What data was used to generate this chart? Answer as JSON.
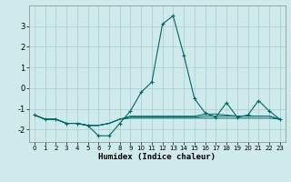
{
  "xlabel": "Humidex (Indice chaleur)",
  "background_color": "#ceeaea",
  "grid_color": "#aacccc",
  "line_color": "#006666",
  "x": [
    0,
    1,
    2,
    3,
    4,
    5,
    6,
    7,
    8,
    9,
    10,
    11,
    12,
    13,
    14,
    15,
    16,
    17,
    18,
    19,
    20,
    21,
    22,
    23
  ],
  "line1": [
    -1.3,
    -1.5,
    -1.5,
    -1.7,
    -1.7,
    -1.8,
    -2.3,
    -2.3,
    -1.7,
    -1.1,
    -0.2,
    0.3,
    3.1,
    3.5,
    1.6,
    -0.5,
    -1.2,
    -1.4,
    -0.7,
    -1.4,
    -1.3,
    -0.6,
    -1.1,
    -1.5
  ],
  "line2": [
    -1.3,
    -1.5,
    -1.5,
    -1.7,
    -1.7,
    -1.8,
    -1.8,
    -1.7,
    -1.5,
    -1.45,
    -1.45,
    -1.45,
    -1.45,
    -1.45,
    -1.45,
    -1.45,
    -1.45,
    -1.45,
    -1.45,
    -1.45,
    -1.45,
    -1.45,
    -1.45,
    -1.5
  ],
  "line3": [
    -1.3,
    -1.5,
    -1.5,
    -1.7,
    -1.7,
    -1.8,
    -1.8,
    -1.7,
    -1.5,
    -1.4,
    -1.4,
    -1.4,
    -1.4,
    -1.4,
    -1.4,
    -1.4,
    -1.35,
    -1.35,
    -1.35,
    -1.35,
    -1.35,
    -1.35,
    -1.35,
    -1.5
  ],
  "line4": [
    -1.3,
    -1.5,
    -1.5,
    -1.7,
    -1.7,
    -1.8,
    -1.8,
    -1.7,
    -1.5,
    -1.35,
    -1.35,
    -1.35,
    -1.35,
    -1.35,
    -1.35,
    -1.35,
    -1.25,
    -1.25,
    -1.3,
    -1.35,
    -1.35,
    -1.35,
    -1.35,
    -1.5
  ],
  "ylim": [
    -2.6,
    4.0
  ],
  "yticks": [
    -2,
    -1,
    0,
    1,
    2,
    3
  ],
  "xticks": [
    0,
    1,
    2,
    3,
    4,
    5,
    6,
    7,
    8,
    9,
    10,
    11,
    12,
    13,
    14,
    15,
    16,
    17,
    18,
    19,
    20,
    21,
    22,
    23
  ],
  "marker": "+"
}
